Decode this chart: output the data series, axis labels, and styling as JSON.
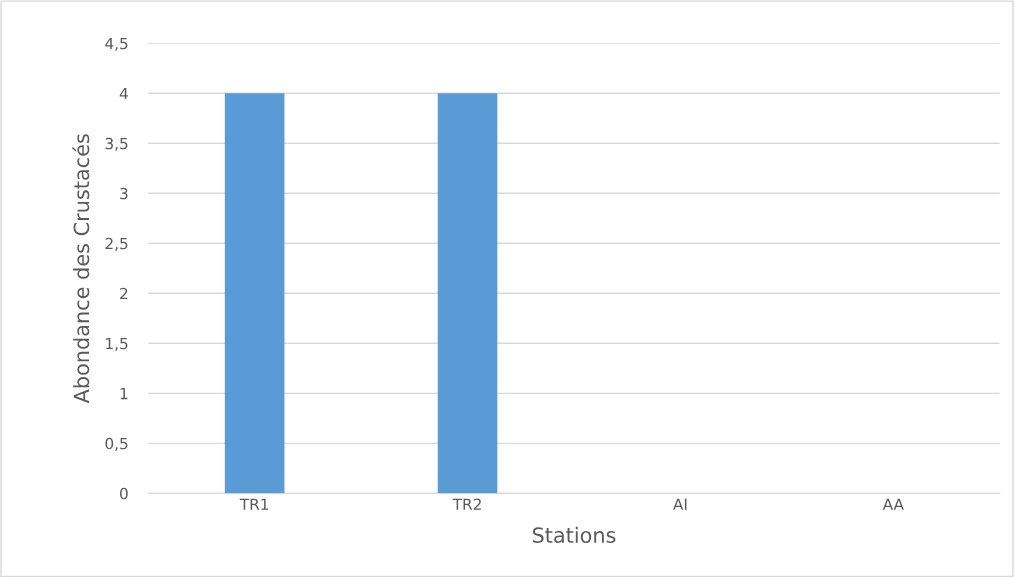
{
  "chart_data": {
    "type": "bar",
    "xlabel": "Stations",
    "ylabel": "Abondance des Crustacés",
    "categories": [
      "TR1",
      "TR2",
      "AI",
      "AA"
    ],
    "values": [
      4,
      4,
      0,
      0
    ],
    "color": "#5b9bd5",
    "ylim": [
      0,
      4.5
    ],
    "yticks": [
      0,
      {
        "value": 0.5,
        "label": "0,5"
      },
      1,
      {
        "value": 1.5,
        "label": "1,5"
      },
      2,
      {
        "value": 2.5,
        "label": "2,5"
      },
      3,
      {
        "value": 3.5,
        "label": "3,5"
      },
      4,
      {
        "value": 4.5,
        "label": "4,5"
      }
    ],
    "grid": "y"
  }
}
